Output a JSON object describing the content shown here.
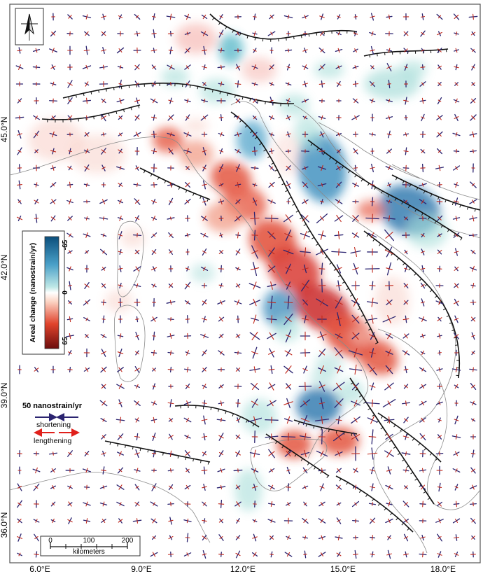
{
  "map": {
    "lon_labels": [
      "6.0°E",
      "9.0°E",
      "12.0°E",
      "15.0°E",
      "18.0°E"
    ],
    "lat_labels": [
      "45.0°N",
      "42.0°N",
      "39.0°N",
      "36.0°N"
    ],
    "north_arrow": {
      "icon": "north-arrow-icon"
    }
  },
  "colorbar": {
    "title": "Areal change (nanostrain/yr)",
    "top_value": "-65",
    "mid_value": "0",
    "bottom_value": "65",
    "colors": {
      "shortening": "#1f6fa8",
      "neutral": "#ffffff",
      "lengthening": "#b2182b"
    }
  },
  "strain_legend": {
    "magnitude": "50 nanostrain/yr",
    "shortening_label": "shortening",
    "lengthening_label": "lengthening",
    "shortening_color": "#2b2470",
    "lengthening_color": "#e0201b"
  },
  "scale_bar": {
    "ticks": [
      "0",
      "100",
      "200"
    ],
    "unit": "kilometers"
  }
}
